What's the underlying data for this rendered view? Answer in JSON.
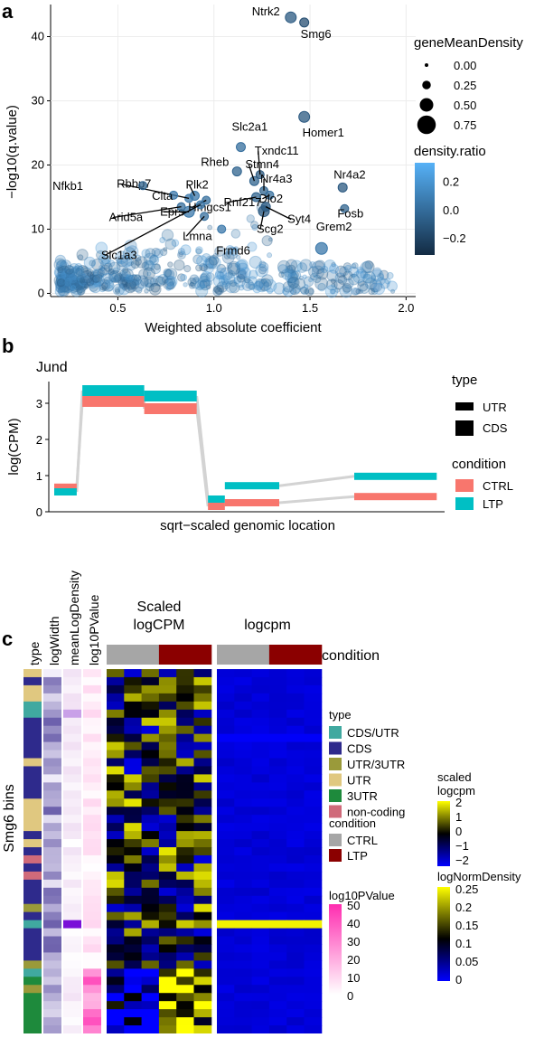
{
  "panels": {
    "a": "a",
    "b": "b",
    "c": "c"
  },
  "colors": {
    "point_low": "#132b43",
    "point_high": "#56b1f7",
    "ctrl": "#f8766d",
    "ltp": "#00bfc4",
    "gray": "#d3d3d3",
    "cond_ctrl": "#a6a6a6",
    "cond_ltp": "#8b0000",
    "heat_blue": "#0000ff",
    "heat_black": "#000000",
    "heat_yellow": "#ffff00"
  },
  "chart_data": [
    {
      "id": "panel-a",
      "type": "scatter",
      "xlabel": "Weighted absolute coefficient",
      "ylabel": "−log10(q.value)",
      "xlim": [
        0.15,
        2.05
      ],
      "ylim": [
        -0.5,
        45
      ],
      "xticks": [
        0.5,
        1.0,
        1.5,
        2.0
      ],
      "xtick_labels": [
        "0.5",
        "1.0",
        "1.5",
        "2.0"
      ],
      "yticks": [
        0,
        10,
        20,
        30,
        40
      ],
      "ytick_labels": [
        "0",
        "10",
        "20",
        "30",
        "40"
      ],
      "grid": true,
      "labeled_points": [
        {
          "name": "Ntrk2",
          "x": 1.4,
          "y": 43.0,
          "size": 0.3,
          "ratio": -0.1
        },
        {
          "name": "Smg6",
          "x": 1.47,
          "y": 42.2,
          "size": 0.2,
          "ratio": -0.15
        },
        {
          "name": "Homer1",
          "x": 1.47,
          "y": 27.5,
          "size": 0.3,
          "ratio": -0.1
        },
        {
          "name": "Slc2a1",
          "x": 1.14,
          "y": 22.8,
          "size": 0.2,
          "ratio": 0.0
        },
        {
          "name": "Rheb",
          "x": 1.12,
          "y": 19.0,
          "size": 0.2,
          "ratio": -0.05
        },
        {
          "name": "Stmn4",
          "x": 1.21,
          "y": 17.5,
          "size": 0.2,
          "ratio": -0.05
        },
        {
          "name": "Txndc11",
          "x": 1.24,
          "y": 18.5,
          "size": 0.15,
          "ratio": -0.1
        },
        {
          "name": "Nr4a3",
          "x": 1.26,
          "y": 16.0,
          "size": 0.15,
          "ratio": -0.05
        },
        {
          "name": "Nr4a2",
          "x": 1.67,
          "y": 16.5,
          "size": 0.2,
          "ratio": -0.1
        },
        {
          "name": "Fosb",
          "x": 1.68,
          "y": 13.2,
          "size": 0.15,
          "ratio": -0.05
        },
        {
          "name": "Dio2",
          "x": 1.29,
          "y": 15.3,
          "size": 0.15,
          "ratio": 0.0
        },
        {
          "name": "Rnf217",
          "x": 1.22,
          "y": 15.0,
          "size": 0.2,
          "ratio": -0.05
        },
        {
          "name": "Rbbp7",
          "x": 0.87,
          "y": 14.8,
          "size": 0.15,
          "ratio": 0.05
        },
        {
          "name": "Plk2",
          "x": 0.9,
          "y": 15.2,
          "size": 0.2,
          "ratio": 0.05
        },
        {
          "name": "Nfkb1",
          "x": 0.63,
          "y": 16.8,
          "size": 0.15,
          "ratio": -0.05
        },
        {
          "name": "Clta",
          "x": 0.79,
          "y": 15.3,
          "size": 0.15,
          "ratio": 0.05
        },
        {
          "name": "Eprs",
          "x": 0.87,
          "y": 12.7,
          "size": 0.3,
          "ratio": 0.05
        },
        {
          "name": "Hmgcs1",
          "x": 0.96,
          "y": 14.5,
          "size": 0.15,
          "ratio": 0.0
        },
        {
          "name": "Arid5a",
          "x": 0.83,
          "y": 13.5,
          "size": 0.15,
          "ratio": 0.0
        },
        {
          "name": "Lmna",
          "x": 0.95,
          "y": 12.0,
          "size": 0.15,
          "ratio": 0.0
        },
        {
          "name": "Slc1a3",
          "x": 0.93,
          "y": 13.8,
          "size": 0.15,
          "ratio": 0.05
        },
        {
          "name": "Frmd6",
          "x": 1.04,
          "y": 10.0,
          "size": 0.15,
          "ratio": 0.05
        },
        {
          "name": "Scg2",
          "x": 1.26,
          "y": 12.8,
          "size": 0.3,
          "ratio": -0.1
        },
        {
          "name": "Syt4",
          "x": 1.27,
          "y": 13.5,
          "size": 0.2,
          "ratio": -0.1
        },
        {
          "name": "Grem2",
          "x": 1.56,
          "y": 7.0,
          "size": 0.35,
          "ratio": 0.05
        }
      ],
      "legend_size": {
        "title": "geneMeanDensity",
        "values": [
          0.0,
          0.25,
          0.5,
          0.75
        ],
        "labels": [
          "0.00",
          "0.25",
          "0.50",
          "0.75"
        ]
      },
      "legend_color": {
        "title": "density.ratio",
        "ticks": [
          0.2,
          0.0,
          -0.2
        ],
        "labels": [
          "0.2",
          "0.0",
          "−0.2"
        ],
        "range": [
          -0.32,
          0.33
        ]
      }
    },
    {
      "id": "panel-b",
      "type": "bar",
      "title": "Jund",
      "xlabel": "sqrt−scaled genomic location",
      "ylabel": "log(CPM)",
      "ylim": [
        0,
        3.6
      ],
      "yticks": [
        0,
        1,
        2,
        3
      ],
      "ytick_labels": [
        "0",
        "1",
        "2",
        "3"
      ],
      "segments": [
        {
          "type": "UTR",
          "x0": 0.0,
          "x1": 0.6,
          "ctrl": 0.68,
          "ltp": 0.55
        },
        {
          "type": "CDS",
          "x0": 0.75,
          "x1": 2.4,
          "ctrl": 3.05,
          "ltp": 3.35
        },
        {
          "type": "CDS",
          "x0": 2.4,
          "x1": 3.8,
          "ctrl": 2.85,
          "ltp": 3.2
        },
        {
          "type": "UTR",
          "x0": 4.1,
          "x1": 4.55,
          "ctrl": 0.15,
          "ltp": 0.35
        },
        {
          "type": "UTR",
          "x0": 4.55,
          "x1": 6.0,
          "ctrl": 0.25,
          "ltp": 0.72
        },
        {
          "type": "UTR",
          "x0": 8.0,
          "x1": 10.2,
          "ctrl": 0.42,
          "ltp": 0.98
        }
      ],
      "legend_type": {
        "title": "type",
        "entries": [
          "UTR",
          "CDS"
        ]
      },
      "legend_condition": {
        "title": "condition",
        "entries": [
          "CTRL",
          "LTP"
        ]
      }
    },
    {
      "id": "panel-c",
      "type": "heatmap",
      "row_title": "Smg6 bins",
      "annotation_columns": [
        "type",
        "logWidth",
        "meanLogDensity",
        "log10PValue"
      ],
      "heatmap_titles": [
        "Scaled\nlogCPM",
        "logcpm"
      ],
      "condition_label": "condition",
      "conditions": [
        "CTRL",
        "CTRL",
        "CTRL",
        "LTP",
        "LTP",
        "LTP"
      ],
      "rows": 45,
      "row_types": [
        "UTR",
        "CDS",
        "UTR",
        "UTR",
        "CDS/UTR",
        "CDS/UTR",
        "CDS",
        "CDS",
        "CDS",
        "CDS",
        "CDS",
        "UTR",
        "CDS",
        "CDS",
        "CDS",
        "CDS",
        "UTR",
        "UTR",
        "UTR",
        "UTR",
        "CDS",
        "UTR",
        "CDS",
        "non-coding",
        "CDS",
        "non-coding",
        "CDS",
        "CDS",
        "CDS",
        "UTR/3UTR",
        "CDS",
        "CDS/UTR",
        "CDS",
        "CDS",
        "CDS",
        "CDS",
        "UTR/3UTR",
        "CDS/UTR",
        "3UTR",
        "UTR/3UTR",
        "3UTR",
        "3UTR",
        "3UTR",
        "3UTR",
        "3UTR"
      ],
      "legend_type": {
        "title": "type",
        "entries": [
          "CDS/UTR",
          "CDS",
          "UTR/3UTR",
          "UTR",
          "3UTR",
          "non-coding"
        ]
      },
      "legend_condition": {
        "title": "condition",
        "entries": [
          "CTRL",
          "LTP"
        ]
      },
      "legend_pvalue": {
        "title": "log10PValue",
        "labels": [
          "50",
          "40",
          "30",
          "20",
          "10",
          "0"
        ]
      },
      "legend_scaled": {
        "title": "scaled\nlogcpm",
        "labels": [
          "2",
          "1",
          "0",
          "−1",
          "−2"
        ]
      },
      "legend_density": {
        "title": "logNormDensity",
        "labels": [
          "0.25",
          "0.2",
          "0.15",
          "0.1",
          "0.05",
          "0"
        ]
      }
    }
  ],
  "type_colors": {
    "CDS/UTR": "#40a9a0",
    "CDS": "#2e2a8c",
    "UTR/3UTR": "#9a9a3a",
    "UTR": "#e0c880",
    "3UTR": "#1e8a3c",
    "non-coding": "#d06a7a"
  }
}
